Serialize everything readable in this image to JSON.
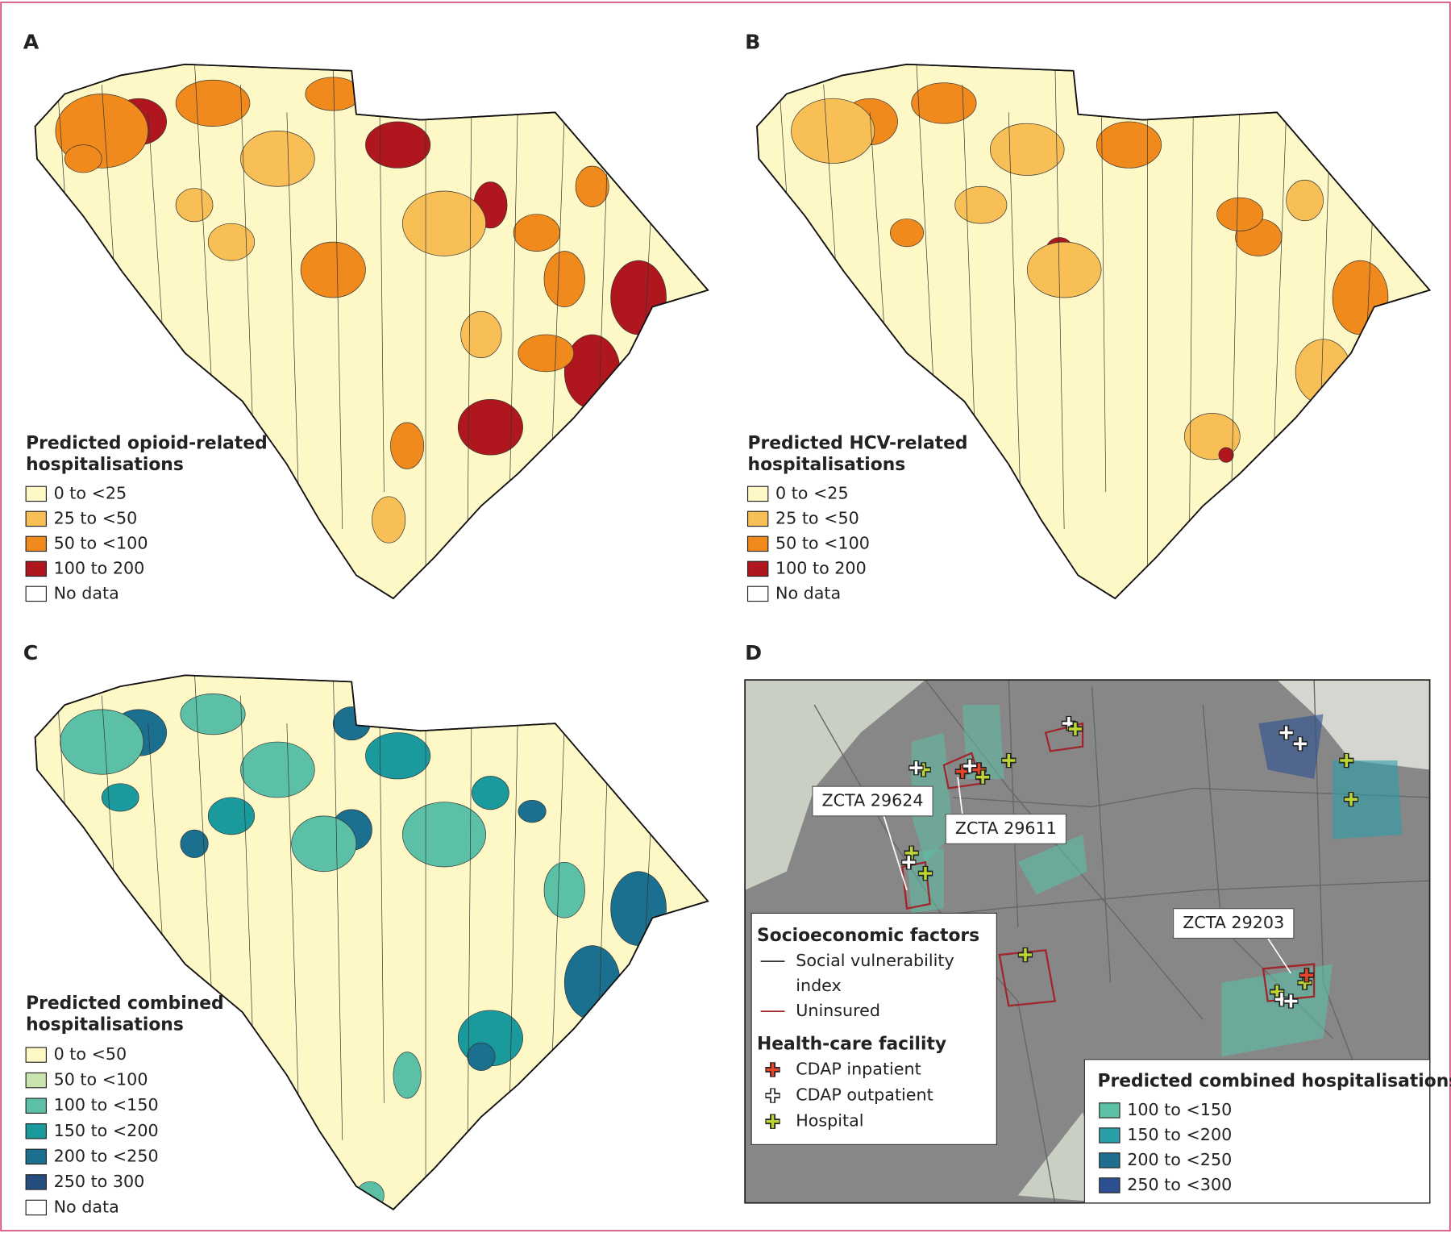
{
  "panels": [
    {
      "label": "A",
      "legend_title": [
        "Predicted opioid-related",
        "hospitalisations"
      ],
      "legend": [
        {
          "label": "0 to <25",
          "color": "#fdf8c6"
        },
        {
          "label": "25 to <50",
          "color": "#f8bf57"
        },
        {
          "label": "50 to <100",
          "color": "#f08a1c"
        },
        {
          "label": "100 to 200",
          "color": "#b0161e"
        },
        {
          "label": "No data",
          "color": "#ffffff"
        }
      ]
    },
    {
      "label": "B",
      "legend_title": [
        "Predicted HCV-related",
        "hospitalisations"
      ],
      "legend": [
        {
          "label": "0 to <25",
          "color": "#fdf8c6"
        },
        {
          "label": "25 to <50",
          "color": "#f8bf57"
        },
        {
          "label": "50 to <100",
          "color": "#f08a1c"
        },
        {
          "label": "100 to 200",
          "color": "#b0161e"
        },
        {
          "label": "No data",
          "color": "#ffffff"
        }
      ]
    },
    {
      "label": "C",
      "legend_title": [
        "Predicted combined",
        "hospitalisations"
      ],
      "legend": [
        {
          "label": "0 to <50",
          "color": "#fdf8c6"
        },
        {
          "label": "50 to <100",
          "color": "#c9e4ad"
        },
        {
          "label": "100 to <150",
          "color": "#5cc0a6"
        },
        {
          "label": "150 to <200",
          "color": "#1a9a9c"
        },
        {
          "label": "200 to <250",
          "color": "#1b6f8f"
        },
        {
          "label": "250 to 300",
          "color": "#244d80"
        },
        {
          "label": "No data",
          "color": "#ffffff"
        }
      ]
    },
    {
      "label": "D",
      "socioeconomic": {
        "title": "Socioeconomic factors",
        "items": [
          {
            "label": [
              "Social vulnerability",
              "index"
            ],
            "color": "#333333"
          },
          {
            "label": [
              "Uninsured"
            ],
            "color": "#a0262c"
          }
        ]
      },
      "facility": {
        "title": "Health-care facility",
        "items": [
          {
            "label": "CDAP inpatient",
            "color": "#e8452a"
          },
          {
            "label": "CDAP outpatient",
            "color": "#ffffff"
          },
          {
            "label": "Hospital",
            "color": "#bcd633"
          }
        ]
      },
      "combined": {
        "title": "Predicted combined hospitalisations",
        "items": [
          {
            "label": "100 to <150",
            "color": "#5cc0a6"
          },
          {
            "label": "150 to <200",
            "color": "#2a9fa8"
          },
          {
            "label": "200 to <250",
            "color": "#1e6e90"
          },
          {
            "label": "250 to <300",
            "color": "#2c508f"
          }
        ]
      },
      "annotations": [
        "ZCTA 29624",
        "ZCTA 29611",
        "ZCTA 29203"
      ]
    }
  ]
}
